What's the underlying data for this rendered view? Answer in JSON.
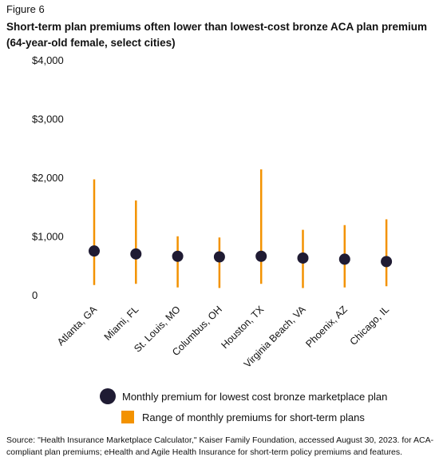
{
  "figure_label": "Figure 6",
  "title": "Short-term plan premiums often lower than lowest-cost bronze ACA plan premium (64-year-old female, select cities)",
  "legend": {
    "dot_label": "Monthly premium for lowest cost bronze marketplace plan",
    "bar_label": "Range of monthly premiums for short-term plans"
  },
  "source": "Source: \"Health Insurance Marketplace Calculator,\" Kaiser Family Foundation, accessed August 30, 2023. for ACA-compliant plan premiums; eHealth and Agile Health Insurance for short-term policy premiums and features.",
  "colors": {
    "dot": "#1f1b33",
    "bar": "#f39200",
    "text": "#111111"
  },
  "chart_data": {
    "type": "scatter",
    "categories": [
      "Atlanta, GA",
      "Miami, FL",
      "St. Louis, MO",
      "Columbus, OH",
      "Houston, TX",
      "Virginia Beach, VA",
      "Phoenix, AZ",
      "Chicago, IL"
    ],
    "series": [
      {
        "name": "Monthly premium for lowest cost bronze marketplace plan",
        "values": [
          760,
          710,
          670,
          660,
          670,
          640,
          620,
          580
        ]
      },
      {
        "name": "Range of monthly premiums for short-term plans",
        "low": [
          180,
          200,
          140,
          130,
          200,
          130,
          140,
          160
        ],
        "high": [
          1980,
          1620,
          1010,
          990,
          2150,
          1120,
          1200,
          1300
        ]
      }
    ],
    "ylim": [
      0,
      4000
    ],
    "yticks": [
      0,
      1000,
      2000,
      3000,
      4000
    ],
    "ytick_labels": [
      "0",
      "$1,000",
      "$2,000",
      "$3,000",
      "$4,000"
    ],
    "grid": false,
    "legend_position": "bottom"
  }
}
